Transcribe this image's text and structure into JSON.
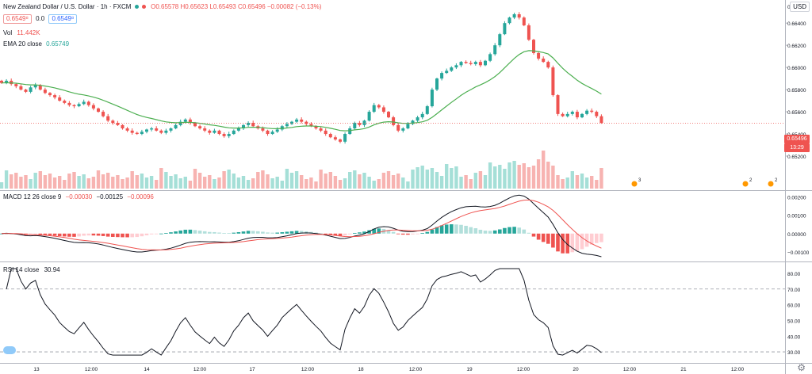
{
  "header": {
    "symbol": "New Zealand Dollar / U.S. Dollar · 1h · FXCM",
    "ohlc": "O0.65578 H0.65623 L0.65493 C0.65496 −0.00082 (−0.13%)",
    "sell_price": "0.6549⁸",
    "spread": "0.0",
    "buy_price": "0.6549⁸",
    "currency": "USD"
  },
  "indicators": {
    "vol_label": "Vol",
    "vol_value": "11.442K",
    "ema_label": "EMA 20 close",
    "ema_value": "0.65749",
    "macd_label": "MACD 12 26 close 9",
    "macd_values": [
      "−0.00030",
      "−0.00125",
      "−0.00096"
    ],
    "rsi_label": "RSI 14 close",
    "rsi_value": "30.94"
  },
  "price_axis": {
    "ticks": [
      "0.66400",
      "0.66200",
      "0.66000",
      "0.65800",
      "0.65600",
      "0.65400",
      "0.65200"
    ],
    "top_tick": "0.",
    "current_price": "0.65496",
    "countdown": "13:29",
    "extra_tick": "0."
  },
  "macd_axis": {
    "ticks": [
      "0.00200",
      "0.00100",
      "0.00000",
      "−0.00100"
    ]
  },
  "rsi_axis": {
    "ticks": [
      "80.00",
      "70.00",
      "60.00",
      "50.00",
      "40.00",
      "30.00"
    ]
  },
  "time_axis": {
    "ticks": [
      "13",
      "12:00",
      "14",
      "12:00",
      "17",
      "12:00",
      "18",
      "12:00",
      "19",
      "12:00",
      "20",
      "12:00",
      "21",
      "12:00"
    ]
  },
  "events": {
    "event1_count": "3",
    "event2_count": "2",
    "event3_count": "2"
  },
  "colors": {
    "up": "#26a69a",
    "down": "#ef5350",
    "ema": "#4caf50",
    "macd": "#131722",
    "signal": "#ef5350",
    "rsi": "#131722"
  },
  "chart_data": {
    "type": "candlestick",
    "price_range": [
      0.6512,
      0.666
    ],
    "candles_approx_closes": [
      0.6586,
      0.6588,
      0.6585,
      0.6583,
      0.658,
      0.6578,
      0.6582,
      0.6584,
      0.658,
      0.6577,
      0.6575,
      0.6573,
      0.657,
      0.6568,
      0.6566,
      0.6565,
      0.6567,
      0.6569,
      0.6566,
      0.6563,
      0.656,
      0.6556,
      0.6552,
      0.655,
      0.6548,
      0.6545,
      0.6543,
      0.6541,
      0.654,
      0.6542,
      0.6544,
      0.6545,
      0.6543,
      0.6541,
      0.6543,
      0.6545,
      0.6548,
      0.6551,
      0.6553,
      0.655,
      0.6547,
      0.6545,
      0.6543,
      0.6541,
      0.6543,
      0.654,
      0.6538,
      0.654,
      0.6543,
      0.6545,
      0.6548,
      0.655,
      0.6547,
      0.6545,
      0.6543,
      0.654,
      0.6542,
      0.6544,
      0.6547,
      0.6549,
      0.6551,
      0.6553,
      0.6551,
      0.6549,
      0.6547,
      0.6545,
      0.6543,
      0.654,
      0.6537,
      0.6535,
      0.6533,
      0.654,
      0.6545,
      0.655,
      0.6548,
      0.6552,
      0.656,
      0.6566,
      0.6564,
      0.656,
      0.6555,
      0.6548,
      0.6543,
      0.6545,
      0.6549,
      0.6552,
      0.6555,
      0.6558,
      0.6565,
      0.658,
      0.659,
      0.6595,
      0.6597,
      0.66,
      0.6602,
      0.6605,
      0.6604,
      0.6603,
      0.6605,
      0.6602,
      0.6606,
      0.6612,
      0.662,
      0.663,
      0.664,
      0.6645,
      0.6648,
      0.6645,
      0.6638,
      0.6625,
      0.6613,
      0.6608,
      0.6605,
      0.66,
      0.6575,
      0.6558,
      0.6556,
      0.6558,
      0.656,
      0.6555,
      0.6558,
      0.6561,
      0.656,
      0.6556,
      0.655
    ],
    "rsi_range": [
      25,
      85
    ],
    "rsi_levels": [
      70,
      30
    ],
    "macd_range": [
      -0.0013,
      0.0021
    ]
  }
}
